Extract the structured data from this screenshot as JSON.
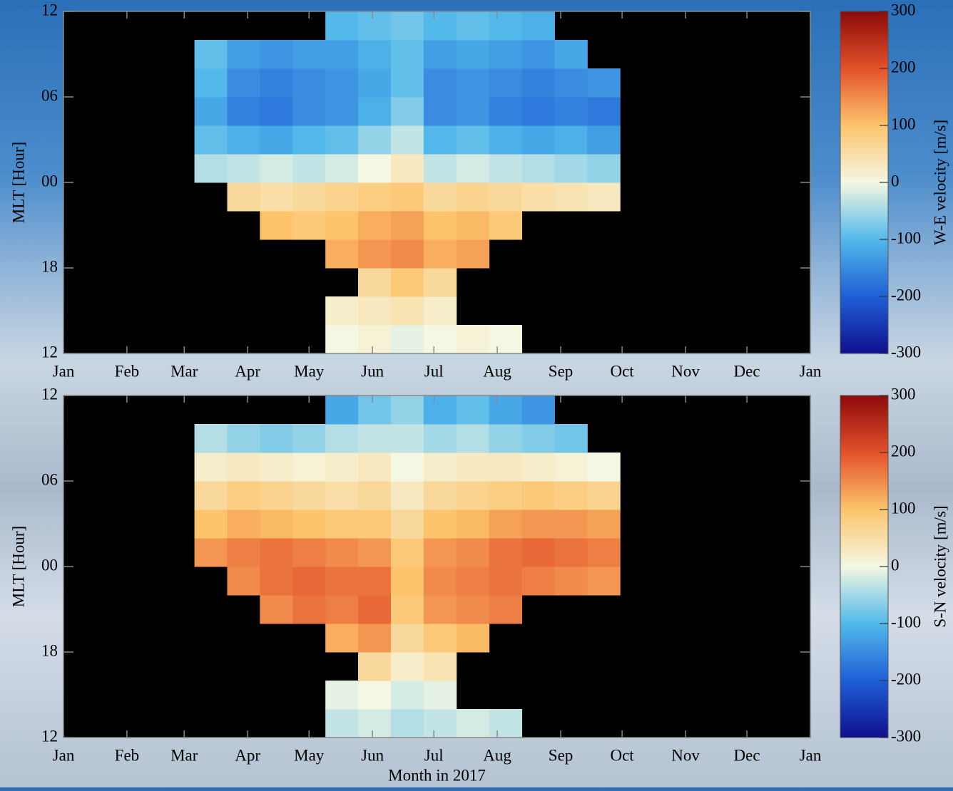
{
  "chart_data": [
    {
      "type": "heatmap",
      "ylabel": "MLT [Hour]",
      "colorbar_label": "W-E velocity [m/s]",
      "xlim": [
        0,
        365
      ],
      "xticks": [
        {
          "value": 0,
          "label": "Jan"
        },
        {
          "value": 31,
          "label": "Feb"
        },
        {
          "value": 59,
          "label": "Mar"
        },
        {
          "value": 90,
          "label": "Apr"
        },
        {
          "value": 120,
          "label": "May"
        },
        {
          "value": 151,
          "label": "Jun"
        },
        {
          "value": 181,
          "label": "Jul"
        },
        {
          "value": 212,
          "label": "Aug"
        },
        {
          "value": 243,
          "label": "Sep"
        },
        {
          "value": 273,
          "label": "Oct"
        },
        {
          "value": 304,
          "label": "Nov"
        },
        {
          "value": 334,
          "label": "Dec"
        },
        {
          "value": 365,
          "label": "Jan"
        }
      ],
      "ylim": [
        12,
        36
      ],
      "yticks": [
        12,
        18,
        {
          "value": 24,
          "label": "00"
        },
        {
          "value": 30,
          "label": "06"
        },
        {
          "value": 36,
          "label": "12"
        }
      ],
      "clim": [
        -300,
        300
      ],
      "cticks": [
        -300,
        -200,
        -100,
        0,
        100,
        200,
        300
      ],
      "colors": [
        "#10108e",
        "#1f5fd6",
        "#52b9ea",
        "#f4f7e2",
        "#fdc46c",
        "#e3512a",
        "#8b0a0a"
      ],
      "xbins": [
        64,
        80,
        96,
        112,
        128,
        144,
        160,
        176,
        192,
        208,
        224,
        240,
        256,
        272
      ],
      "ybins": [
        12,
        14,
        16,
        18,
        20,
        22,
        24,
        26,
        28,
        30,
        32,
        34,
        36
      ],
      "values": [
        [
          null,
          null,
          null,
          null,
          0,
          10,
          -10,
          0,
          10,
          0,
          null,
          null,
          null
        ],
        [
          null,
          null,
          null,
          null,
          20,
          30,
          40,
          20,
          null,
          null,
          null,
          null,
          null
        ],
        [
          null,
          null,
          null,
          null,
          null,
          60,
          90,
          60,
          null,
          null,
          null,
          null,
          null
        ],
        [
          null,
          null,
          null,
          null,
          120,
          140,
          150,
          120,
          130,
          null,
          null,
          null,
          null
        ],
        [
          null,
          null,
          100,
          90,
          100,
          120,
          130,
          100,
          110,
          90,
          null,
          null,
          null
        ],
        [
          null,
          60,
          50,
          60,
          70,
          80,
          90,
          60,
          70,
          60,
          50,
          40,
          30
        ],
        [
          -40,
          -30,
          -20,
          -30,
          -20,
          0,
          30,
          -30,
          -20,
          -30,
          -40,
          -50,
          -60
        ],
        [
          -90,
          -110,
          -120,
          -100,
          -90,
          -60,
          -30,
          -100,
          -90,
          -110,
          -120,
          -110,
          -130
        ],
        [
          -120,
          -160,
          -170,
          -150,
          -140,
          -110,
          -70,
          -150,
          -140,
          -160,
          -170,
          -160,
          -170
        ],
        [
          -100,
          -150,
          -160,
          -150,
          -140,
          -120,
          -90,
          -150,
          -140,
          -150,
          -160,
          -150,
          -140
        ],
        [
          -90,
          -130,
          -140,
          -130,
          -130,
          -110,
          -90,
          -130,
          -120,
          -130,
          -140,
          -120,
          null
        ],
        [
          null,
          null,
          null,
          null,
          -100,
          -90,
          -80,
          -100,
          -90,
          -100,
          -110,
          null,
          null
        ]
      ]
    },
    {
      "type": "heatmap",
      "ylabel": "MLT [Hour]",
      "xlabel": "Month in 2017",
      "colorbar_label": "S-N velocity [m/s]",
      "xlim": [
        0,
        365
      ],
      "xticks": [
        {
          "value": 0,
          "label": "Jan"
        },
        {
          "value": 31,
          "label": "Feb"
        },
        {
          "value": 59,
          "label": "Mar"
        },
        {
          "value": 90,
          "label": "Apr"
        },
        {
          "value": 120,
          "label": "May"
        },
        {
          "value": 151,
          "label": "Jun"
        },
        {
          "value": 181,
          "label": "Jul"
        },
        {
          "value": 212,
          "label": "Aug"
        },
        {
          "value": 243,
          "label": "Sep"
        },
        {
          "value": 273,
          "label": "Oct"
        },
        {
          "value": 304,
          "label": "Nov"
        },
        {
          "value": 334,
          "label": "Dec"
        },
        {
          "value": 365,
          "label": "Jan"
        }
      ],
      "ylim": [
        12,
        36
      ],
      "yticks": [
        12,
        18,
        {
          "value": 24,
          "label": "00"
        },
        {
          "value": 30,
          "label": "06"
        },
        {
          "value": 36,
          "label": "12"
        }
      ],
      "clim": [
        -300,
        300
      ],
      "cticks": [
        -300,
        -200,
        -100,
        0,
        100,
        200,
        300
      ],
      "colors": [
        "#10108e",
        "#1f5fd6",
        "#52b9ea",
        "#f4f7e2",
        "#fdc46c",
        "#e3512a",
        "#8b0a0a"
      ],
      "xbins": [
        64,
        80,
        96,
        112,
        128,
        144,
        160,
        176,
        192,
        208,
        224,
        240,
        256,
        272
      ],
      "ybins": [
        12,
        14,
        16,
        18,
        20,
        22,
        24,
        26,
        28,
        30,
        32,
        34,
        36
      ],
      "values": [
        [
          null,
          null,
          null,
          null,
          -30,
          -20,
          -40,
          -30,
          -20,
          -30,
          null,
          null,
          null
        ],
        [
          null,
          null,
          null,
          null,
          -10,
          0,
          -20,
          -10,
          null,
          null,
          null,
          null,
          null
        ],
        [
          null,
          null,
          null,
          null,
          null,
          60,
          20,
          40,
          null,
          null,
          null,
          null,
          null
        ],
        [
          null,
          null,
          null,
          null,
          120,
          140,
          60,
          90,
          110,
          null,
          null,
          null,
          null
        ],
        [
          null,
          null,
          150,
          170,
          160,
          180,
          90,
          140,
          150,
          160,
          null,
          null,
          null
        ],
        [
          null,
          150,
          170,
          180,
          170,
          170,
          100,
          150,
          160,
          170,
          160,
          150,
          140
        ],
        [
          140,
          160,
          170,
          160,
          150,
          140,
          90,
          140,
          150,
          170,
          180,
          170,
          160
        ],
        [
          100,
          120,
          110,
          100,
          90,
          90,
          60,
          100,
          110,
          130,
          140,
          140,
          130
        ],
        [
          60,
          80,
          70,
          60,
          50,
          60,
          30,
          60,
          70,
          80,
          90,
          80,
          70
        ],
        [
          20,
          30,
          20,
          10,
          20,
          30,
          0,
          20,
          30,
          30,
          20,
          10,
          0
        ],
        [
          -40,
          -60,
          -70,
          -60,
          -40,
          -30,
          -30,
          -50,
          -40,
          -60,
          -70,
          -80,
          null
        ],
        [
          null,
          null,
          null,
          null,
          -120,
          -80,
          -60,
          -110,
          -90,
          -120,
          -140,
          null,
          null
        ]
      ]
    }
  ]
}
